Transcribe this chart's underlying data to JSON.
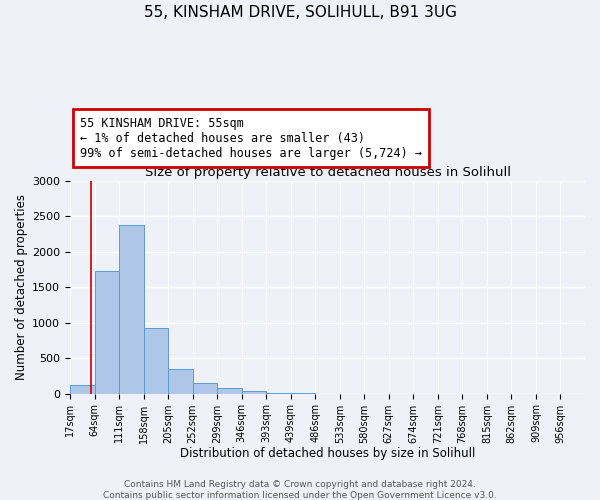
{
  "title": "55, KINSHAM DRIVE, SOLIHULL, B91 3UG",
  "subtitle": "Size of property relative to detached houses in Solihull",
  "xlabel": "Distribution of detached houses by size in Solihull",
  "ylabel": "Number of detached properties",
  "bin_labels": [
    "17sqm",
    "64sqm",
    "111sqm",
    "158sqm",
    "205sqm",
    "252sqm",
    "299sqm",
    "346sqm",
    "393sqm",
    "439sqm",
    "486sqm",
    "533sqm",
    "580sqm",
    "627sqm",
    "674sqm",
    "721sqm",
    "768sqm",
    "815sqm",
    "862sqm",
    "909sqm",
    "956sqm"
  ],
  "bar_values": [
    120,
    1720,
    2370,
    920,
    345,
    155,
    80,
    30,
    15,
    5,
    0,
    0,
    0,
    0,
    0,
    0,
    0,
    0,
    0,
    0,
    0
  ],
  "bar_color": "#aec6e8",
  "bar_edge_color": "#5b9bd5",
  "vline_x_index": 0.87,
  "annotation_text": "55 KINSHAM DRIVE: 55sqm\n← 1% of detached houses are smaller (43)\n99% of semi-detached houses are larger (5,724) →",
  "annotation_box_color": "#ffffff",
  "annotation_box_edge": "#cc0000",
  "vline_color": "#cc0000",
  "ylim": [
    0,
    3000
  ],
  "yticks": [
    0,
    500,
    1000,
    1500,
    2000,
    2500,
    3000
  ],
  "footer1": "Contains HM Land Registry data © Crown copyright and database right 2024.",
  "footer2": "Contains public sector information licensed under the Open Government Licence v3.0.",
  "background_color": "#eef2f8",
  "grid_color": "#ffffff",
  "title_fontsize": 11,
  "subtitle_fontsize": 9.5,
  "annotation_fontsize": 8.5,
  "footer_fontsize": 6.5
}
